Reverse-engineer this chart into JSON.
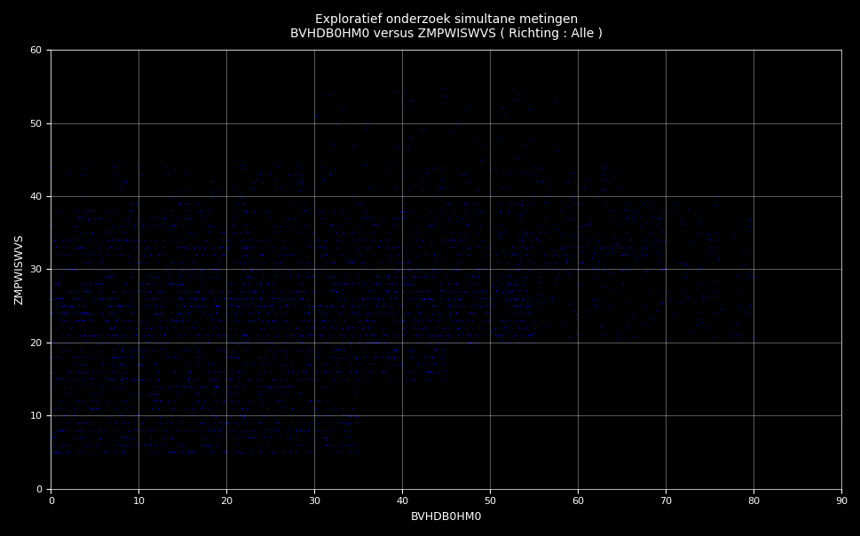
{
  "title": "Exploratief onderzoek simultane metingen\nBVHDB0HM0 versus ZMPWISWVS ( Richting : Alle )",
  "xlabel": "BVHDB0HM0",
  "ylabel": "ZMPWISWVS",
  "background_color": "#000000",
  "text_color": "#ffffff",
  "grid_color": "#ffffff",
  "dot_color": "#0000cc",
  "dot_size": 1.2,
  "xlim": [
    0,
    90
  ],
  "ylim": [
    0,
    60
  ],
  "xticks": [
    0,
    10,
    20,
    30,
    40,
    50,
    60,
    70,
    80,
    90
  ],
  "yticks": [
    0,
    10,
    20,
    30,
    40,
    50,
    60
  ],
  "seed": 42,
  "n_points": 5000
}
